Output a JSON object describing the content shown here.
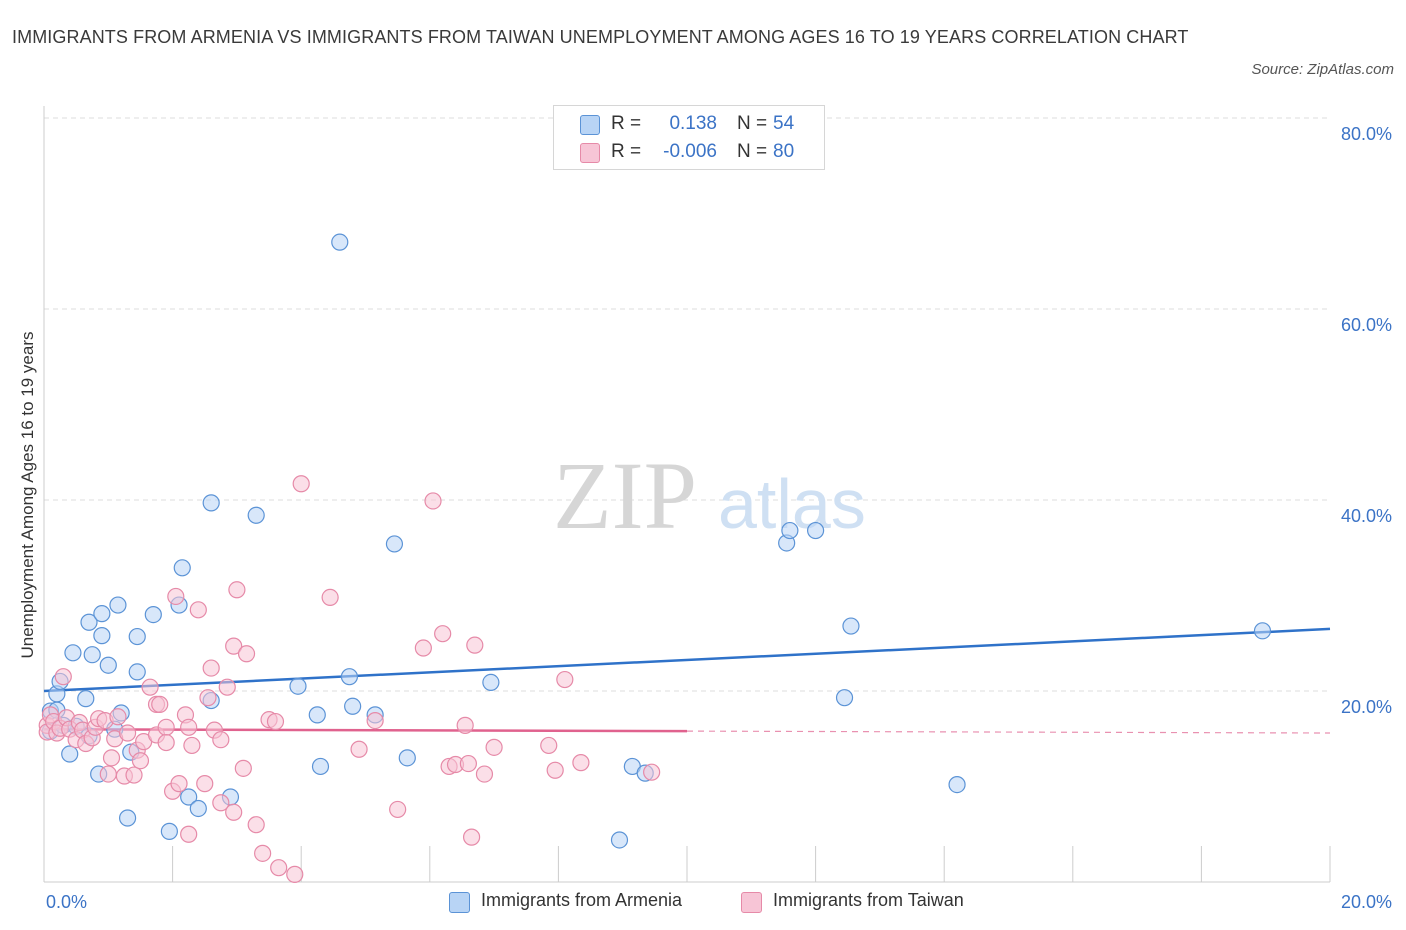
{
  "header": {
    "title": "IMMIGRANTS FROM ARMENIA VS IMMIGRANTS FROM TAIWAN UNEMPLOYMENT AMONG AGES 16 TO 19 YEARS CORRELATION CHART",
    "source": "Source: ZipAtlas.com"
  },
  "watermark": {
    "zip": "ZIP",
    "atlas": "atlas"
  },
  "stats": {
    "rows": [
      {
        "r_label": "R =",
        "r_value": "0.138",
        "n_label": "N =",
        "n_value": "54"
      },
      {
        "r_label": "R =",
        "r_value": "-0.006",
        "n_label": "N =",
        "n_value": "80"
      }
    ]
  },
  "colors": {
    "armenia_fill": "#b8d4f5",
    "armenia_stroke": "#5b93d6",
    "armenia_line": "#2f72c9",
    "taiwan_fill": "#f7c5d6",
    "taiwan_stroke": "#e68aa8",
    "taiwan_line": "#e0628e",
    "value_text": "#3b73c6",
    "grid": "#dddddd",
    "axis": "#cccccc"
  },
  "chart_data": {
    "type": "scatter",
    "title": "IMMIGRANTS FROM ARMENIA VS IMMIGRANTS FROM TAIWAN UNEMPLOYMENT AMONG AGES 16 TO 19 YEARS CORRELATION CHART",
    "xlabel": "",
    "ylabel": "Unemployment Among Ages 16 to 19 years",
    "xlim": [
      0,
      20
    ],
    "ylim": [
      0,
      80
    ],
    "x_tick_labels": [
      "0.0%",
      "20.0%"
    ],
    "y_ticks": [
      20,
      40,
      60,
      80
    ],
    "y_tick_labels": [
      "20.0%",
      "40.0%",
      "60.0%",
      "80.0%"
    ],
    "grid": true,
    "legend_position": "bottom",
    "series": [
      {
        "name": "Immigrants from Armenia",
        "R": 0.138,
        "N": 54,
        "trend": {
          "x": [
            0,
            20
          ],
          "y": [
            20.0,
            26.5
          ]
        },
        "points": [
          [
            0.1,
            15.8
          ],
          [
            0.1,
            17.9
          ],
          [
            0.2,
            19.7
          ],
          [
            0.2,
            18.0
          ],
          [
            0.25,
            21.0
          ],
          [
            0.3,
            16.4
          ],
          [
            0.4,
            13.4
          ],
          [
            0.45,
            24.0
          ],
          [
            0.5,
            16.3
          ],
          [
            0.65,
            19.2
          ],
          [
            0.7,
            15.3
          ],
          [
            0.7,
            27.2
          ],
          [
            0.75,
            23.8
          ],
          [
            0.85,
            11.3
          ],
          [
            0.9,
            25.8
          ],
          [
            0.9,
            28.1
          ],
          [
            1.0,
            22.7
          ],
          [
            1.1,
            16.0
          ],
          [
            1.15,
            29.0
          ],
          [
            1.2,
            17.7
          ],
          [
            1.3,
            6.7
          ],
          [
            1.35,
            13.6
          ],
          [
            1.45,
            22.0
          ],
          [
            1.45,
            25.7
          ],
          [
            1.7,
            28.0
          ],
          [
            1.95,
            5.3
          ],
          [
            2.1,
            29.0
          ],
          [
            2.15,
            32.9
          ],
          [
            2.25,
            8.9
          ],
          [
            2.4,
            7.7
          ],
          [
            2.6,
            19.0
          ],
          [
            2.6,
            39.7
          ],
          [
            2.9,
            8.9
          ],
          [
            3.3,
            38.4
          ],
          [
            3.95,
            20.5
          ],
          [
            4.25,
            17.5
          ],
          [
            4.3,
            12.1
          ],
          [
            4.6,
            67.0
          ],
          [
            4.75,
            21.5
          ],
          [
            4.8,
            18.4
          ],
          [
            5.15,
            17.5
          ],
          [
            5.45,
            35.4
          ],
          [
            5.65,
            13.0
          ],
          [
            6.95,
            20.9
          ],
          [
            8.95,
            4.4
          ],
          [
            9.15,
            12.1
          ],
          [
            9.35,
            11.4
          ],
          [
            11.55,
            35.5
          ],
          [
            11.6,
            36.8
          ],
          [
            12.0,
            36.8
          ],
          [
            12.55,
            26.8
          ],
          [
            12.45,
            19.3
          ],
          [
            14.2,
            10.2
          ],
          [
            18.95,
            26.3
          ]
        ]
      },
      {
        "name": "Immigrants from Taiwan",
        "R": -0.006,
        "N": 80,
        "trend": {
          "x": [
            0,
            20
          ],
          "y": [
            16.0,
            15.6
          ]
        },
        "points": [
          [
            0.05,
            16.4
          ],
          [
            0.05,
            15.7
          ],
          [
            0.1,
            17.5
          ],
          [
            0.15,
            16.8
          ],
          [
            0.2,
            15.6
          ],
          [
            0.25,
            16.1
          ],
          [
            0.3,
            21.5
          ],
          [
            0.35,
            17.2
          ],
          [
            0.4,
            16.0
          ],
          [
            0.5,
            14.9
          ],
          [
            0.55,
            16.7
          ],
          [
            0.6,
            15.9
          ],
          [
            0.65,
            14.5
          ],
          [
            0.75,
            15.1
          ],
          [
            0.8,
            16.2
          ],
          [
            0.85,
            17.1
          ],
          [
            0.95,
            16.9
          ],
          [
            1.0,
            11.3
          ],
          [
            1.05,
            13.0
          ],
          [
            1.1,
            15.0
          ],
          [
            1.15,
            17.3
          ],
          [
            1.25,
            11.1
          ],
          [
            1.3,
            15.6
          ],
          [
            1.4,
            11.2
          ],
          [
            1.45,
            13.8
          ],
          [
            1.5,
            12.7
          ],
          [
            1.55,
            14.7
          ],
          [
            1.65,
            20.4
          ],
          [
            1.75,
            15.4
          ],
          [
            1.75,
            18.6
          ],
          [
            1.8,
            18.6
          ],
          [
            1.9,
            16.2
          ],
          [
            1.9,
            14.6
          ],
          [
            2.0,
            9.5
          ],
          [
            2.05,
            29.9
          ],
          [
            2.1,
            10.3
          ],
          [
            2.2,
            17.5
          ],
          [
            2.25,
            5.0
          ],
          [
            2.25,
            16.2
          ],
          [
            2.3,
            14.3
          ],
          [
            2.4,
            28.5
          ],
          [
            2.5,
            10.3
          ],
          [
            2.55,
            19.3
          ],
          [
            2.6,
            22.4
          ],
          [
            2.65,
            15.9
          ],
          [
            2.75,
            14.9
          ],
          [
            2.75,
            8.3
          ],
          [
            2.85,
            20.4
          ],
          [
            2.95,
            7.3
          ],
          [
            2.95,
            24.7
          ],
          [
            3.0,
            30.6
          ],
          [
            3.15,
            23.9
          ],
          [
            3.1,
            11.9
          ],
          [
            3.3,
            6.0
          ],
          [
            3.4,
            3.0
          ],
          [
            3.5,
            17.0
          ],
          [
            3.6,
            16.8
          ],
          [
            3.65,
            1.5
          ],
          [
            3.9,
            0.8
          ],
          [
            4.0,
            41.7
          ],
          [
            4.45,
            29.8
          ],
          [
            4.9,
            13.9
          ],
          [
            5.15,
            16.9
          ],
          [
            5.5,
            7.6
          ],
          [
            6.05,
            39.9
          ],
          [
            5.9,
            24.5
          ],
          [
            6.2,
            26.0
          ],
          [
            6.3,
            12.1
          ],
          [
            6.4,
            12.3
          ],
          [
            6.55,
            16.4
          ],
          [
            6.6,
            12.4
          ],
          [
            6.65,
            4.7
          ],
          [
            6.7,
            24.8
          ],
          [
            6.85,
            11.3
          ],
          [
            7.0,
            14.1
          ],
          [
            7.85,
            14.3
          ],
          [
            7.95,
            11.7
          ],
          [
            8.1,
            21.2
          ],
          [
            8.35,
            12.5
          ],
          [
            9.45,
            11.5
          ]
        ]
      }
    ]
  },
  "legend": {
    "items": [
      {
        "label": "Immigrants from Armenia"
      },
      {
        "label": "Immigrants from Taiwan"
      }
    ]
  }
}
